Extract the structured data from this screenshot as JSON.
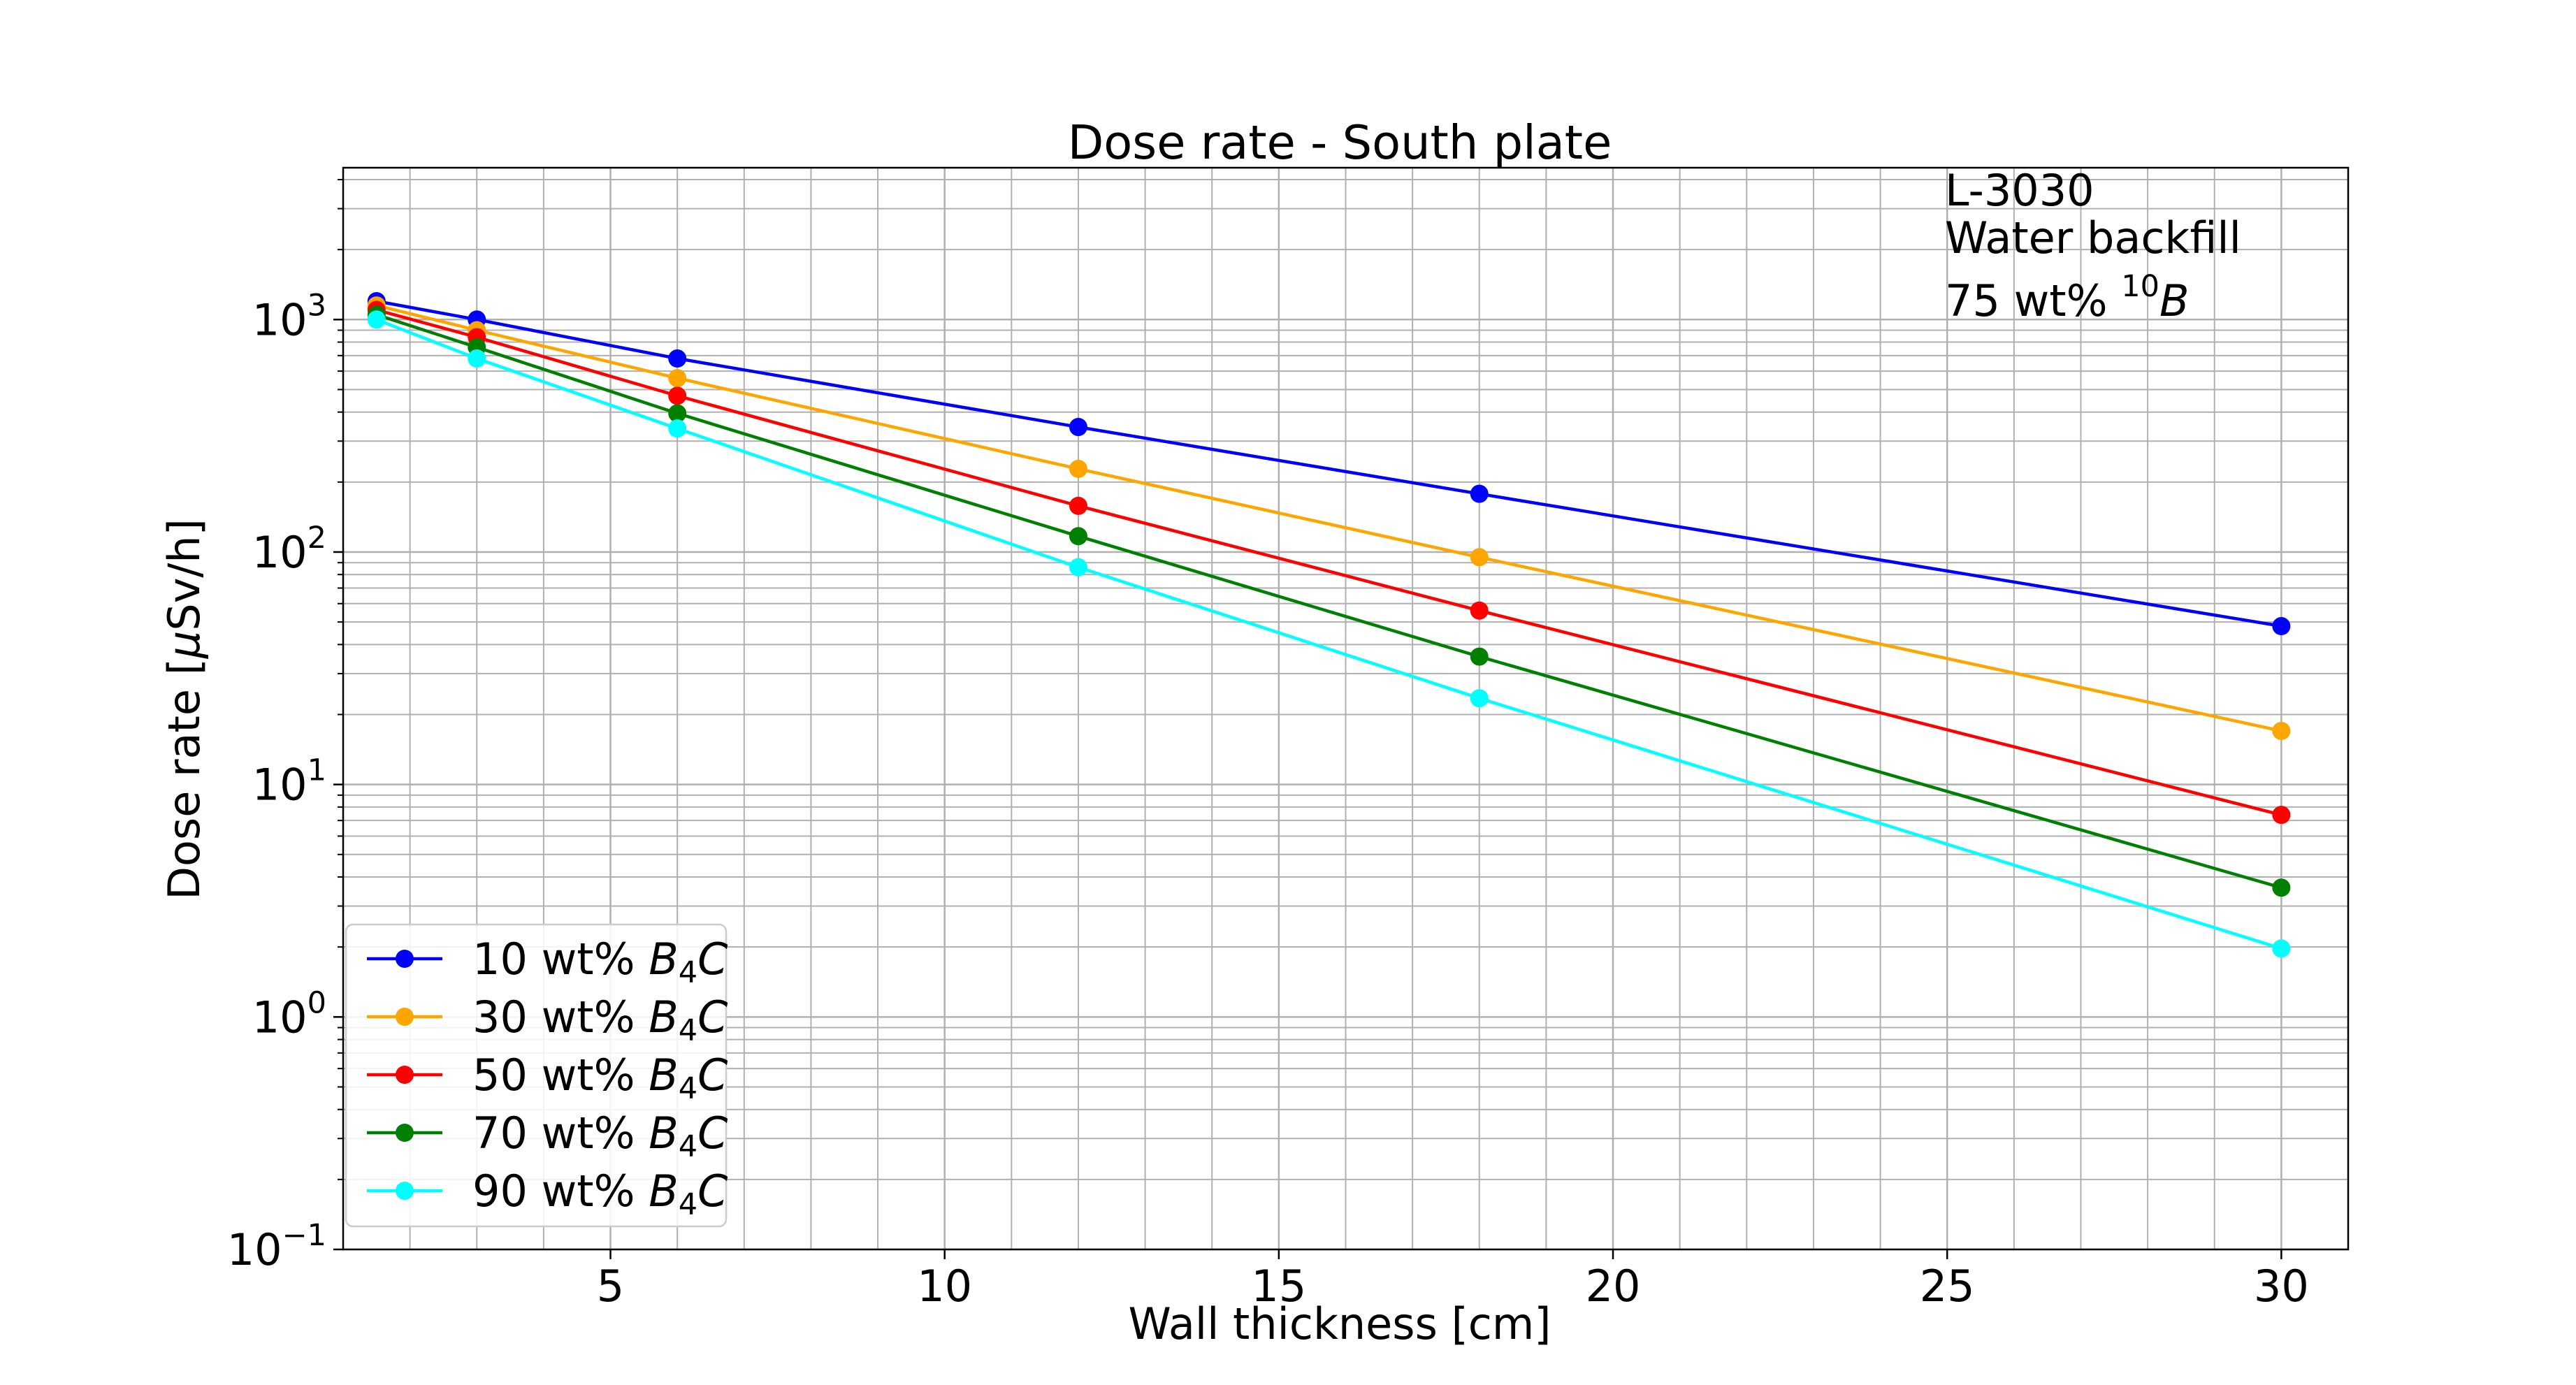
{
  "chart_data": {
    "type": "line",
    "title": "Dose rate - South plate",
    "xlabel": "Wall thickness [cm]",
    "ylabel": {
      "pre": "Dose rate [",
      "mu": "μ",
      "post": "Sv/h]"
    },
    "y_scale": "log",
    "xlim": [
      1.0,
      31.0
    ],
    "ylim": [
      0.1,
      4500
    ],
    "grid": true,
    "legend_position": "lower-left",
    "x_ticks": [
      {
        "value": 5,
        "label": "5"
      },
      {
        "value": 10,
        "label": "10"
      },
      {
        "value": 15,
        "label": "15"
      },
      {
        "value": 20,
        "label": "20"
      },
      {
        "value": 25,
        "label": "25"
      },
      {
        "value": 30,
        "label": "30"
      }
    ],
    "y_ticks": [
      {
        "value": 0.1,
        "base": "10",
        "exp": "−1"
      },
      {
        "value": 1,
        "base": "10",
        "exp": "0"
      },
      {
        "value": 10,
        "base": "10",
        "exp": "1"
      },
      {
        "value": 100,
        "base": "10",
        "exp": "2"
      },
      {
        "value": 1000,
        "base": "10",
        "exp": "3"
      }
    ],
    "annotation": {
      "line1": "L-3030",
      "line2": "Water backfill",
      "line3_pre": "75 wt% ",
      "line3_sup": "10",
      "line3_var": "B"
    },
    "x": [
      1.5,
      3,
      6,
      12,
      18,
      30
    ],
    "series": [
      {
        "name": {
          "pre": "10 wt% ",
          "b": "B",
          "sub": "4",
          "c": "C"
        },
        "color": "#0000ff",
        "values": [
          1200,
          1000,
          680,
          345,
          178,
          48
        ]
      },
      {
        "name": {
          "pre": "30 wt% ",
          "b": "B",
          "sub": "4",
          "c": "C"
        },
        "color": "#ffa500",
        "values": [
          1150,
          900,
          560,
          228,
          95,
          17
        ]
      },
      {
        "name": {
          "pre": "50 wt% ",
          "b": "B",
          "sub": "4",
          "c": "C"
        },
        "color": "#ff0000",
        "values": [
          1100,
          840,
          470,
          158,
          56,
          7.4
        ]
      },
      {
        "name": {
          "pre": "70 wt% ",
          "b": "B",
          "sub": "4",
          "c": "C"
        },
        "color": "#008000",
        "values": [
          1050,
          760,
          395,
          117,
          35.5,
          3.6
        ]
      },
      {
        "name": {
          "pre": "90 wt% ",
          "b": "B",
          "sub": "4",
          "c": "C"
        },
        "color": "#00ffff",
        "values": [
          1000,
          680,
          340,
          86,
          23.5,
          1.97
        ]
      }
    ]
  }
}
